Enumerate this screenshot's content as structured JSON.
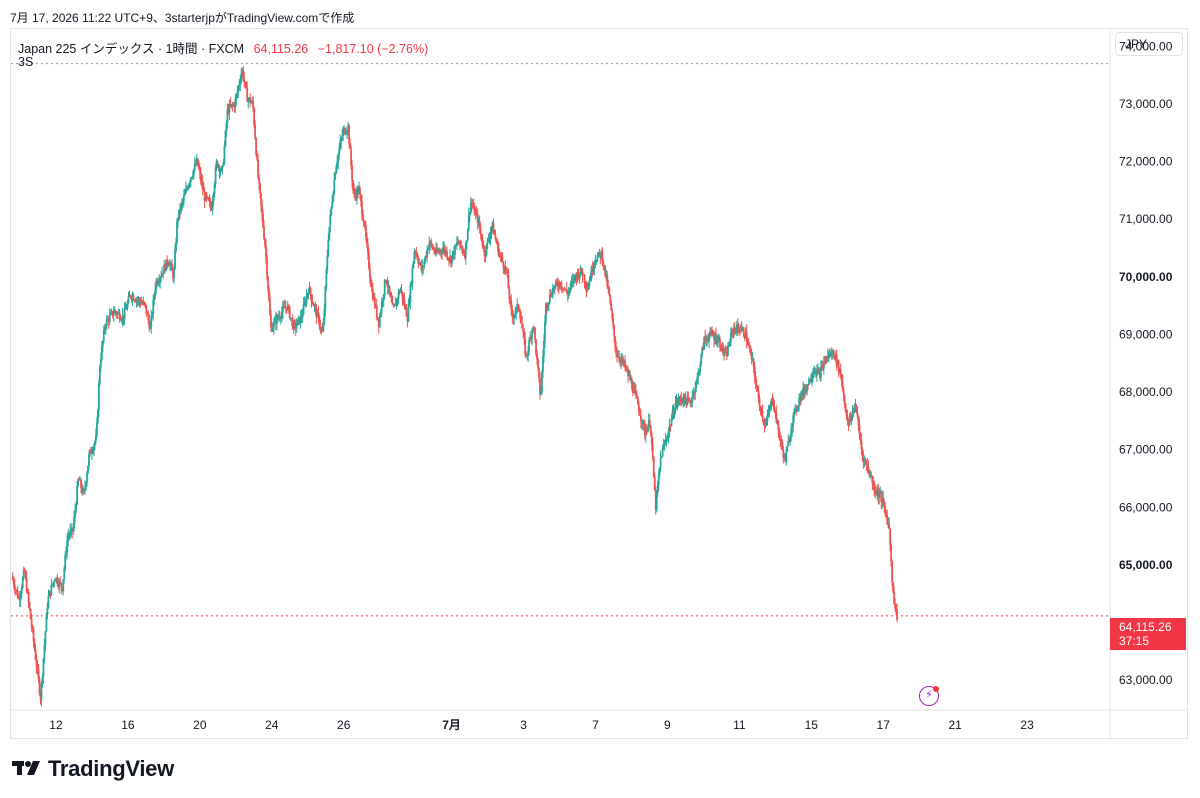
{
  "header": {
    "caption": "7月 17, 2026 11:22 UTC+9、3starterjpがTradingView.comで作成"
  },
  "legend": {
    "symbol": "Japan 225 インデックス · 1時間 · FXCM",
    "price": "64,115.26",
    "change": "−1,817.10 (−2.76%)",
    "line2": "3S"
  },
  "currency_button": "JPY",
  "last_price": {
    "value": "64,115.26",
    "countdown": "37:15"
  },
  "brand": {
    "name": "TradingView"
  },
  "icons": {
    "alert": "lightning-bolt-icon",
    "logo": "tradingview-logo-icon"
  },
  "colors": {
    "up": "#26a69a",
    "down": "#ef5350",
    "last_price_line": "#f23645",
    "dotted_high_line": "#9598a1"
  },
  "chart_data": {
    "type": "candlestick",
    "title": "Japan 225 インデックス · 1時間 · FXCM",
    "interval": "1時間",
    "currency": "JPY",
    "ylim": [
      62500,
      74300
    ],
    "y_ticks": [
      {
        "value": 63000,
        "label": "63,000.00",
        "bold": false
      },
      {
        "value": 65000,
        "label": "65,000.00",
        "bold": true
      },
      {
        "value": 66000,
        "label": "66,000.00",
        "bold": false
      },
      {
        "value": 67000,
        "label": "67,000.00",
        "bold": false
      },
      {
        "value": 68000,
        "label": "68,000.00",
        "bold": false
      },
      {
        "value": 69000,
        "label": "69,000.00",
        "bold": false
      },
      {
        "value": 70000,
        "label": "70,000.00",
        "bold": true
      },
      {
        "value": 71000,
        "label": "71,000.00",
        "bold": false
      },
      {
        "value": 72000,
        "label": "72,000.00",
        "bold": false
      },
      {
        "value": 73000,
        "label": "73,000.00",
        "bold": false
      },
      {
        "value": 74000,
        "label": "74,000.00",
        "bold": false
      }
    ],
    "x_ticks": [
      {
        "day": 12,
        "label": "12",
        "bold": false
      },
      {
        "day": 16,
        "label": "16",
        "bold": false
      },
      {
        "day": 20,
        "label": "20",
        "bold": false
      },
      {
        "day": 24,
        "label": "24",
        "bold": false
      },
      {
        "day": 28,
        "label": "26",
        "bold": false
      },
      {
        "day": 34,
        "label": "7月",
        "bold": true
      },
      {
        "day": 38,
        "label": "3",
        "bold": false
      },
      {
        "day": 42,
        "label": "7",
        "bold": false
      },
      {
        "day": 46,
        "label": "9",
        "bold": false
      },
      {
        "day": 50,
        "label": "11",
        "bold": false
      },
      {
        "day": 54,
        "label": "15",
        "bold": false
      },
      {
        "day": 58,
        "label": "17",
        "bold": false
      },
      {
        "day": 62,
        "label": "21",
        "bold": false
      },
      {
        "day": 66,
        "label": "23",
        "bold": false
      }
    ],
    "xlim": [
      9.5,
      70.5
    ],
    "high_line": 73700,
    "last_price": 64115.26,
    "change": -1817.1,
    "change_pct": -2.76,
    "price_path": [
      [
        9.6,
        64800
      ],
      [
        10.0,
        64400
      ],
      [
        10.3,
        64900
      ],
      [
        10.8,
        63700
      ],
      [
        11.2,
        62700
      ],
      [
        11.6,
        64400
      ],
      [
        12.0,
        64800
      ],
      [
        12.4,
        64600
      ],
      [
        12.7,
        65500
      ],
      [
        13.0,
        65600
      ],
      [
        13.3,
        66500
      ],
      [
        13.6,
        66200
      ],
      [
        13.9,
        66900
      ],
      [
        14.3,
        67200
      ],
      [
        14.5,
        68500
      ],
      [
        14.8,
        69200
      ],
      [
        15.3,
        69400
      ],
      [
        15.8,
        69300
      ],
      [
        16.2,
        69700
      ],
      [
        16.6,
        69600
      ],
      [
        17.0,
        69500
      ],
      [
        17.3,
        69100
      ],
      [
        17.6,
        69900
      ],
      [
        18.0,
        70100
      ],
      [
        18.3,
        70300
      ],
      [
        18.6,
        70000
      ],
      [
        18.8,
        71000
      ],
      [
        19.1,
        71300
      ],
      [
        19.5,
        71700
      ],
      [
        19.9,
        72000
      ],
      [
        20.3,
        71400
      ],
      [
        20.7,
        71200
      ],
      [
        21.0,
        72000
      ],
      [
        21.3,
        71800
      ],
      [
        21.6,
        72900
      ],
      [
        22.0,
        73000
      ],
      [
        22.4,
        73600
      ],
      [
        22.7,
        73100
      ],
      [
        23.0,
        73000
      ],
      [
        23.3,
        71700
      ],
      [
        23.7,
        70500
      ],
      [
        24.0,
        69100
      ],
      [
        24.4,
        69300
      ],
      [
        24.9,
        69500
      ],
      [
        25.3,
        69100
      ],
      [
        25.7,
        69300
      ],
      [
        26.1,
        69800
      ],
      [
        26.5,
        69400
      ],
      [
        26.9,
        69000
      ],
      [
        27.2,
        70700
      ],
      [
        27.6,
        71900
      ],
      [
        28.0,
        72500
      ],
      [
        28.3,
        72600
      ],
      [
        28.6,
        71400
      ],
      [
        28.9,
        71500
      ],
      [
        29.2,
        70900
      ],
      [
        29.6,
        69800
      ],
      [
        30.0,
        69200
      ],
      [
        30.4,
        70000
      ],
      [
        30.8,
        69400
      ],
      [
        31.2,
        69800
      ],
      [
        31.6,
        69300
      ],
      [
        32.0,
        70500
      ],
      [
        32.4,
        70100
      ],
      [
        32.8,
        70600
      ],
      [
        33.2,
        70400
      ],
      [
        33.6,
        70500
      ],
      [
        34.0,
        70300
      ],
      [
        34.4,
        70600
      ],
      [
        34.8,
        70400
      ],
      [
        35.1,
        71300
      ],
      [
        35.5,
        71000
      ],
      [
        35.9,
        70400
      ],
      [
        36.3,
        70900
      ],
      [
        36.7,
        70400
      ],
      [
        37.1,
        70100
      ],
      [
        37.4,
        69300
      ],
      [
        37.8,
        69500
      ],
      [
        38.2,
        68600
      ],
      [
        38.6,
        69200
      ],
      [
        39.0,
        67900
      ],
      [
        39.3,
        69500
      ],
      [
        39.7,
        69800
      ],
      [
        40.1,
        69900
      ],
      [
        40.5,
        69700
      ],
      [
        40.9,
        70000
      ],
      [
        41.3,
        70100
      ],
      [
        41.6,
        69800
      ],
      [
        42.0,
        70300
      ],
      [
        42.4,
        70400
      ],
      [
        42.8,
        69700
      ],
      [
        43.2,
        68700
      ],
      [
        43.6,
        68500
      ],
      [
        44.0,
        68200
      ],
      [
        44.4,
        67800
      ],
      [
        44.8,
        67300
      ],
      [
        45.1,
        67500
      ],
      [
        45.4,
        66000
      ],
      [
        45.7,
        66900
      ],
      [
        46.1,
        67300
      ],
      [
        46.5,
        67800
      ],
      [
        46.9,
        67900
      ],
      [
        47.3,
        67800
      ],
      [
        47.7,
        68200
      ],
      [
        48.1,
        68900
      ],
      [
        48.5,
        69000
      ],
      [
        48.9,
        68900
      ],
      [
        49.3,
        68600
      ],
      [
        49.7,
        69100
      ],
      [
        50.1,
        69100
      ],
      [
        50.4,
        69000
      ],
      [
        50.8,
        68500
      ],
      [
        51.1,
        67900
      ],
      [
        51.5,
        67400
      ],
      [
        51.9,
        67900
      ],
      [
        52.3,
        67200
      ],
      [
        52.6,
        66800
      ],
      [
        53.0,
        67500
      ],
      [
        53.4,
        67900
      ],
      [
        53.8,
        68100
      ],
      [
        54.2,
        68400
      ],
      [
        54.5,
        68300
      ],
      [
        54.9,
        68600
      ],
      [
        55.3,
        68700
      ],
      [
        55.7,
        68300
      ],
      [
        56.1,
        67400
      ],
      [
        56.5,
        67800
      ],
      [
        56.9,
        66900
      ],
      [
        57.3,
        66600
      ],
      [
        57.6,
        66300
      ],
      [
        57.9,
        66200
      ],
      [
        58.2,
        65900
      ],
      [
        58.4,
        65600
      ],
      [
        58.6,
        64500
      ],
      [
        58.8,
        64115
      ]
    ]
  }
}
